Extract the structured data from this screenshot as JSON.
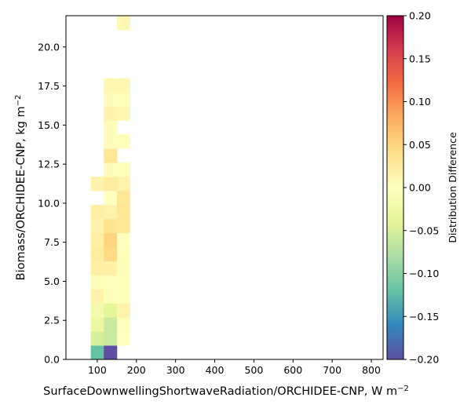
{
  "chart_data": {
    "type": "heatmap",
    "xlabel": "SurfaceDownwellingShortwaveRadiation/ORCHIDEE-CNP,  W m",
    "xlabel_sup": "−2",
    "ylabel": "Biomass/ORCHIDEE-CNP,  kg m",
    "ylabel_sup": "−2",
    "xlim": [
      20,
      830
    ],
    "ylim": [
      0,
      22
    ],
    "xticks": [
      100,
      200,
      300,
      400,
      500,
      600,
      700,
      800
    ],
    "xtick_labels": [
      "100",
      "200",
      "300",
      "400",
      "500",
      "600",
      "700",
      "800"
    ],
    "yticks": [
      0,
      2.5,
      5,
      7.5,
      10,
      12.5,
      15,
      17.5,
      20
    ],
    "ytick_labels": [
      "0.0",
      "2.5",
      "5.0",
      "7.5",
      "10.0",
      "12.5",
      "15.0",
      "17.5",
      "20.0"
    ],
    "colormap": "Spectral_r",
    "colorbar": {
      "label": "Distribution Difference",
      "vmin": -0.2,
      "vmax": 0.2,
      "ticks": [
        -0.2,
        -0.15,
        -0.1,
        -0.05,
        0,
        0.05,
        0.1,
        0.15,
        0.2
      ],
      "tick_labels": [
        "−0.20",
        "−0.15",
        "−0.10",
        "−0.05",
        "0.00",
        "0.05",
        "0.10",
        "0.15",
        "0.20"
      ]
    },
    "bin_width_x": 33.3,
    "bin_height_y": 0.9,
    "cells": [
      {
        "x": 83.5,
        "y": 0.0,
        "v": -0.12
      },
      {
        "x": 116.8,
        "y": 0.0,
        "v": -0.2
      },
      {
        "x": 83.5,
        "y": 0.9,
        "v": -0.05
      },
      {
        "x": 116.8,
        "y": 0.9,
        "v": -0.06
      },
      {
        "x": 150.1,
        "y": 0.9,
        "v": 0.0
      },
      {
        "x": 83.5,
        "y": 1.8,
        "v": -0.03
      },
      {
        "x": 116.8,
        "y": 1.8,
        "v": -0.06
      },
      {
        "x": 150.1,
        "y": 1.8,
        "v": -0.005
      },
      {
        "x": 83.5,
        "y": 2.7,
        "v": -0.02
      },
      {
        "x": 116.8,
        "y": 2.7,
        "v": -0.04
      },
      {
        "x": 150.1,
        "y": 2.7,
        "v": 0.015
      },
      {
        "x": 83.5,
        "y": 3.6,
        "v": 0.015
      },
      {
        "x": 116.8,
        "y": 3.6,
        "v": -0.005
      },
      {
        "x": 150.1,
        "y": 3.6,
        "v": -0.005
      },
      {
        "x": 83.5,
        "y": 4.5,
        "v": 0.005
      },
      {
        "x": 116.8,
        "y": 4.5,
        "v": 0.005
      },
      {
        "x": 150.1,
        "y": 4.5,
        "v": -0.005
      },
      {
        "x": 83.5,
        "y": 5.4,
        "v": 0.02
      },
      {
        "x": 116.8,
        "y": 5.4,
        "v": 0.02
      },
      {
        "x": 150.1,
        "y": 5.4,
        "v": -0.005
      },
      {
        "x": 83.5,
        "y": 6.3,
        "v": 0.025
      },
      {
        "x": 116.8,
        "y": 6.3,
        "v": 0.045
      },
      {
        "x": 150.1,
        "y": 6.3,
        "v": -0.005
      },
      {
        "x": 83.5,
        "y": 7.2,
        "v": 0.02
      },
      {
        "x": 116.8,
        "y": 7.2,
        "v": 0.05
      },
      {
        "x": 150.1,
        "y": 7.2,
        "v": 0.0
      },
      {
        "x": 83.5,
        "y": 8.1,
        "v": 0.015
      },
      {
        "x": 116.8,
        "y": 8.1,
        "v": 0.035
      },
      {
        "x": 150.1,
        "y": 8.1,
        "v": 0.03
      },
      {
        "x": 83.5,
        "y": 9.0,
        "v": 0.02
      },
      {
        "x": 116.8,
        "y": 9.0,
        "v": 0.015
      },
      {
        "x": 150.1,
        "y": 9.0,
        "v": 0.03
      },
      {
        "x": 116.8,
        "y": 9.9,
        "v": 0.0
      },
      {
        "x": 150.1,
        "y": 9.9,
        "v": 0.03
      },
      {
        "x": 83.5,
        "y": 10.8,
        "v": 0.015
      },
      {
        "x": 116.8,
        "y": 10.8,
        "v": 0.025
      },
      {
        "x": 150.1,
        "y": 10.8,
        "v": 0.015
      },
      {
        "x": 116.8,
        "y": 11.7,
        "v": 0.005
      },
      {
        "x": 150.1,
        "y": 11.7,
        "v": 0.005
      },
      {
        "x": 116.8,
        "y": 12.6,
        "v": 0.03
      },
      {
        "x": 116.8,
        "y": 13.5,
        "v": 0.005
      },
      {
        "x": 150.1,
        "y": 13.5,
        "v": 0.005
      },
      {
        "x": 116.8,
        "y": 14.4,
        "v": 0.005
      },
      {
        "x": 116.8,
        "y": 15.3,
        "v": 0.015
      },
      {
        "x": 150.1,
        "y": 15.3,
        "v": 0.01
      },
      {
        "x": 116.8,
        "y": 16.2,
        "v": 0.005
      },
      {
        "x": 150.1,
        "y": 16.2,
        "v": 0.005
      },
      {
        "x": 116.8,
        "y": 17.1,
        "v": 0.01
      },
      {
        "x": 150.1,
        "y": 17.1,
        "v": 0.01
      },
      {
        "x": 150.1,
        "y": 21.1,
        "v": 0.01
      }
    ]
  }
}
